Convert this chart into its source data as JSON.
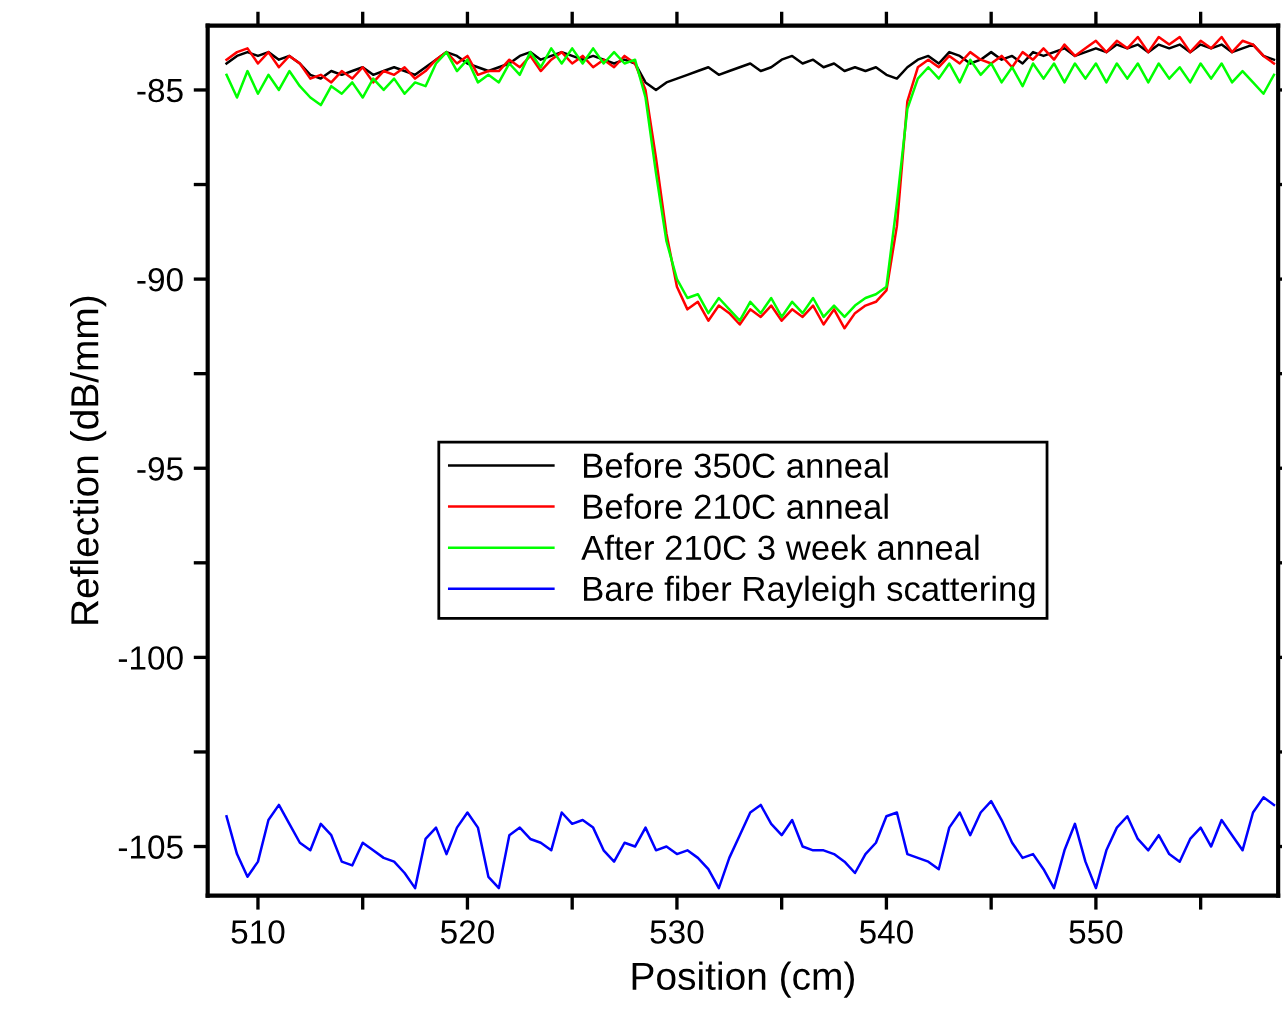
{
  "chart_data": {
    "type": "line",
    "xlabel": "Position (cm)",
    "ylabel": "Reflection (dB/mm)",
    "xlim": [
      507.6,
      558.7
    ],
    "ylim": [
      -106.3,
      -83.3
    ],
    "xticks": [
      510,
      {
        "value": 515,
        "label": null
      },
      520,
      {
        "value": 525,
        "label": null
      },
      530,
      {
        "value": 535,
        "label": null
      },
      540,
      {
        "value": 545,
        "label": null
      },
      550,
      {
        "value": 555,
        "label": null
      }
    ],
    "yticks": [
      -85,
      {
        "value": -87.5,
        "label": null
      },
      -90,
      {
        "value": -92.5,
        "label": null
      },
      -95,
      {
        "value": -97.5,
        "label": null
      },
      -100,
      {
        "value": -102.5,
        "label": null
      },
      -105
    ],
    "grid": false,
    "legend": "center",
    "marker": "none",
    "line_style": "solid",
    "x": [
      508.5,
      509,
      509.5,
      510,
      510.5,
      511,
      511.5,
      512,
      512.5,
      513,
      513.5,
      514,
      514.5,
      515,
      515.5,
      516,
      516.5,
      517,
      517.5,
      518,
      518.5,
      519,
      519.5,
      520,
      520.5,
      521,
      521.5,
      522,
      522.5,
      523,
      523.5,
      524,
      524.5,
      525,
      525.5,
      526,
      526.5,
      527,
      527.5,
      528,
      528.5,
      529,
      529.5,
      530,
      530.5,
      531,
      531.5,
      532,
      532.5,
      533,
      533.5,
      534,
      534.5,
      535,
      535.5,
      536,
      536.5,
      537,
      537.5,
      538,
      538.5,
      539,
      539.5,
      540,
      540.5,
      541,
      541.5,
      542,
      542.5,
      543,
      543.5,
      544,
      544.5,
      545,
      545.5,
      546,
      546.5,
      547,
      547.5,
      548,
      548.5,
      549,
      549.5,
      550,
      550.5,
      551,
      551.5,
      552,
      552.5,
      553,
      553.5,
      554,
      554.5,
      555,
      555.5,
      556,
      556.5,
      557,
      557.5,
      558,
      558.5
    ],
    "series": [
      {
        "name": "Before 350C anneal",
        "color": "#000000",
        "values": [
          -84.3,
          -84.1,
          -84.0,
          -84.1,
          -84.0,
          -84.2,
          -84.1,
          -84.3,
          -84.6,
          -84.7,
          -84.5,
          -84.6,
          -84.5,
          -84.4,
          -84.6,
          -84.5,
          -84.4,
          -84.5,
          -84.6,
          -84.4,
          -84.2,
          -84.0,
          -84.1,
          -84.3,
          -84.4,
          -84.5,
          -84.4,
          -84.3,
          -84.1,
          -84.0,
          -84.2,
          -84.1,
          -84.0,
          -84.1,
          -84.2,
          -84.1,
          -84.2,
          -84.3,
          -84.2,
          -84.3,
          -84.8,
          -85.0,
          -84.8,
          -84.7,
          -84.6,
          -84.5,
          -84.4,
          -84.6,
          -84.5,
          -84.4,
          -84.3,
          -84.5,
          -84.4,
          -84.2,
          -84.1,
          -84.3,
          -84.2,
          -84.4,
          -84.3,
          -84.5,
          -84.4,
          -84.5,
          -84.4,
          -84.6,
          -84.7,
          -84.4,
          -84.2,
          -84.1,
          -84.3,
          -84.0,
          -84.1,
          -84.3,
          -84.2,
          -84.0,
          -84.2,
          -84.1,
          -84.3,
          -84.0,
          -84.1,
          -84.0,
          -83.9,
          -84.1,
          -84.0,
          -83.9,
          -84.0,
          -83.8,
          -83.9,
          -83.8,
          -84.0,
          -83.8,
          -83.9,
          -83.8,
          -84.0,
          -83.8,
          -83.9,
          -83.8,
          -84.0,
          -83.9,
          -83.8,
          -84.1,
          -84.2
        ]
      },
      {
        "name": "Before 210C anneal",
        "color": "#ff0000",
        "values": [
          -84.2,
          -84.0,
          -83.9,
          -84.3,
          -84.0,
          -84.4,
          -84.1,
          -84.3,
          -84.7,
          -84.6,
          -84.8,
          -84.5,
          -84.7,
          -84.4,
          -84.8,
          -84.5,
          -84.6,
          -84.4,
          -84.7,
          -84.5,
          -84.2,
          -84.0,
          -84.3,
          -84.1,
          -84.6,
          -84.5,
          -84.5,
          -84.2,
          -84.4,
          -84.1,
          -84.5,
          -84.2,
          -84.0,
          -84.3,
          -84.1,
          -84.4,
          -84.2,
          -84.4,
          -84.1,
          -84.3,
          -85.0,
          -86.8,
          -88.8,
          -90.2,
          -90.8,
          -90.6,
          -91.1,
          -90.7,
          -90.9,
          -91.2,
          -90.8,
          -91.0,
          -90.7,
          -91.1,
          -90.8,
          -91.0,
          -90.7,
          -91.2,
          -90.8,
          -91.3,
          -90.9,
          -90.7,
          -90.6,
          -90.3,
          -88.6,
          -85.3,
          -84.4,
          -84.2,
          -84.4,
          -84.1,
          -84.3,
          -84.0,
          -84.2,
          -84.3,
          -84.1,
          -84.4,
          -84.0,
          -84.2,
          -83.9,
          -84.2,
          -83.8,
          -84.1,
          -83.9,
          -83.7,
          -84.0,
          -83.7,
          -83.9,
          -83.6,
          -84.0,
          -83.6,
          -83.8,
          -83.6,
          -84.0,
          -83.7,
          -83.9,
          -83.6,
          -84.0,
          -83.7,
          -83.8,
          -84.1,
          -84.3
        ]
      },
      {
        "name": "After 210C 3 week anneal",
        "color": "#00ff00",
        "values": [
          -84.6,
          -85.2,
          -84.5,
          -85.1,
          -84.6,
          -85.0,
          -84.5,
          -84.9,
          -85.2,
          -85.4,
          -84.9,
          -85.1,
          -84.8,
          -85.2,
          -84.7,
          -85.0,
          -84.7,
          -85.1,
          -84.8,
          -84.9,
          -84.3,
          -84.0,
          -84.5,
          -84.2,
          -84.8,
          -84.6,
          -84.8,
          -84.3,
          -84.6,
          -84.0,
          -84.4,
          -83.9,
          -84.3,
          -83.9,
          -84.3,
          -83.9,
          -84.3,
          -84.0,
          -84.3,
          -84.2,
          -85.2,
          -87.2,
          -89.0,
          -90.0,
          -90.5,
          -90.4,
          -90.9,
          -90.5,
          -90.8,
          -91.1,
          -90.6,
          -90.9,
          -90.5,
          -91.0,
          -90.6,
          -90.9,
          -90.5,
          -91.0,
          -90.7,
          -91.0,
          -90.7,
          -90.5,
          -90.4,
          -90.2,
          -88.0,
          -85.5,
          -84.7,
          -84.4,
          -84.7,
          -84.3,
          -84.8,
          -84.2,
          -84.6,
          -84.3,
          -84.8,
          -84.4,
          -84.9,
          -84.3,
          -84.7,
          -84.3,
          -84.8,
          -84.3,
          -84.7,
          -84.3,
          -84.8,
          -84.3,
          -84.7,
          -84.3,
          -84.8,
          -84.3,
          -84.7,
          -84.4,
          -84.8,
          -84.3,
          -84.7,
          -84.3,
          -84.8,
          -84.5,
          -84.8,
          -85.1,
          -84.6
        ]
      },
      {
        "name": "Bare fiber Rayleigh scattering",
        "color": "#0000ff",
        "values": [
          -104.2,
          -105.2,
          -105.8,
          -105.4,
          -104.3,
          -103.9,
          -104.4,
          -104.9,
          -105.1,
          -104.4,
          -104.7,
          -105.4,
          -105.5,
          -104.9,
          -105.1,
          -105.3,
          -105.4,
          -105.7,
          -106.1,
          -104.8,
          -104.5,
          -105.2,
          -104.5,
          -104.1,
          -104.5,
          -105.8,
          -106.1,
          -104.7,
          -104.5,
          -104.8,
          -104.9,
          -105.1,
          -104.1,
          -104.4,
          -104.3,
          -104.5,
          -105.1,
          -105.4,
          -104.9,
          -105.0,
          -104.5,
          -105.1,
          -105.0,
          -105.2,
          -105.1,
          -105.3,
          -105.6,
          -106.1,
          -105.3,
          -104.7,
          -104.1,
          -103.9,
          -104.4,
          -104.7,
          -104.3,
          -105.0,
          -105.1,
          -105.1,
          -105.2,
          -105.4,
          -105.7,
          -105.2,
          -104.9,
          -104.2,
          -104.1,
          -105.2,
          -105.3,
          -105.4,
          -105.6,
          -104.5,
          -104.1,
          -104.7,
          -104.1,
          -103.8,
          -104.3,
          -104.9,
          -105.3,
          -105.2,
          -105.6,
          -106.1,
          -105.1,
          -104.4,
          -105.4,
          -106.1,
          -105.1,
          -104.5,
          -104.2,
          -104.8,
          -105.1,
          -104.7,
          -105.2,
          -105.4,
          -104.8,
          -104.5,
          -105.0,
          -104.3,
          -104.7,
          -105.1,
          -104.1,
          -103.7,
          -103.9
        ]
      }
    ]
  }
}
